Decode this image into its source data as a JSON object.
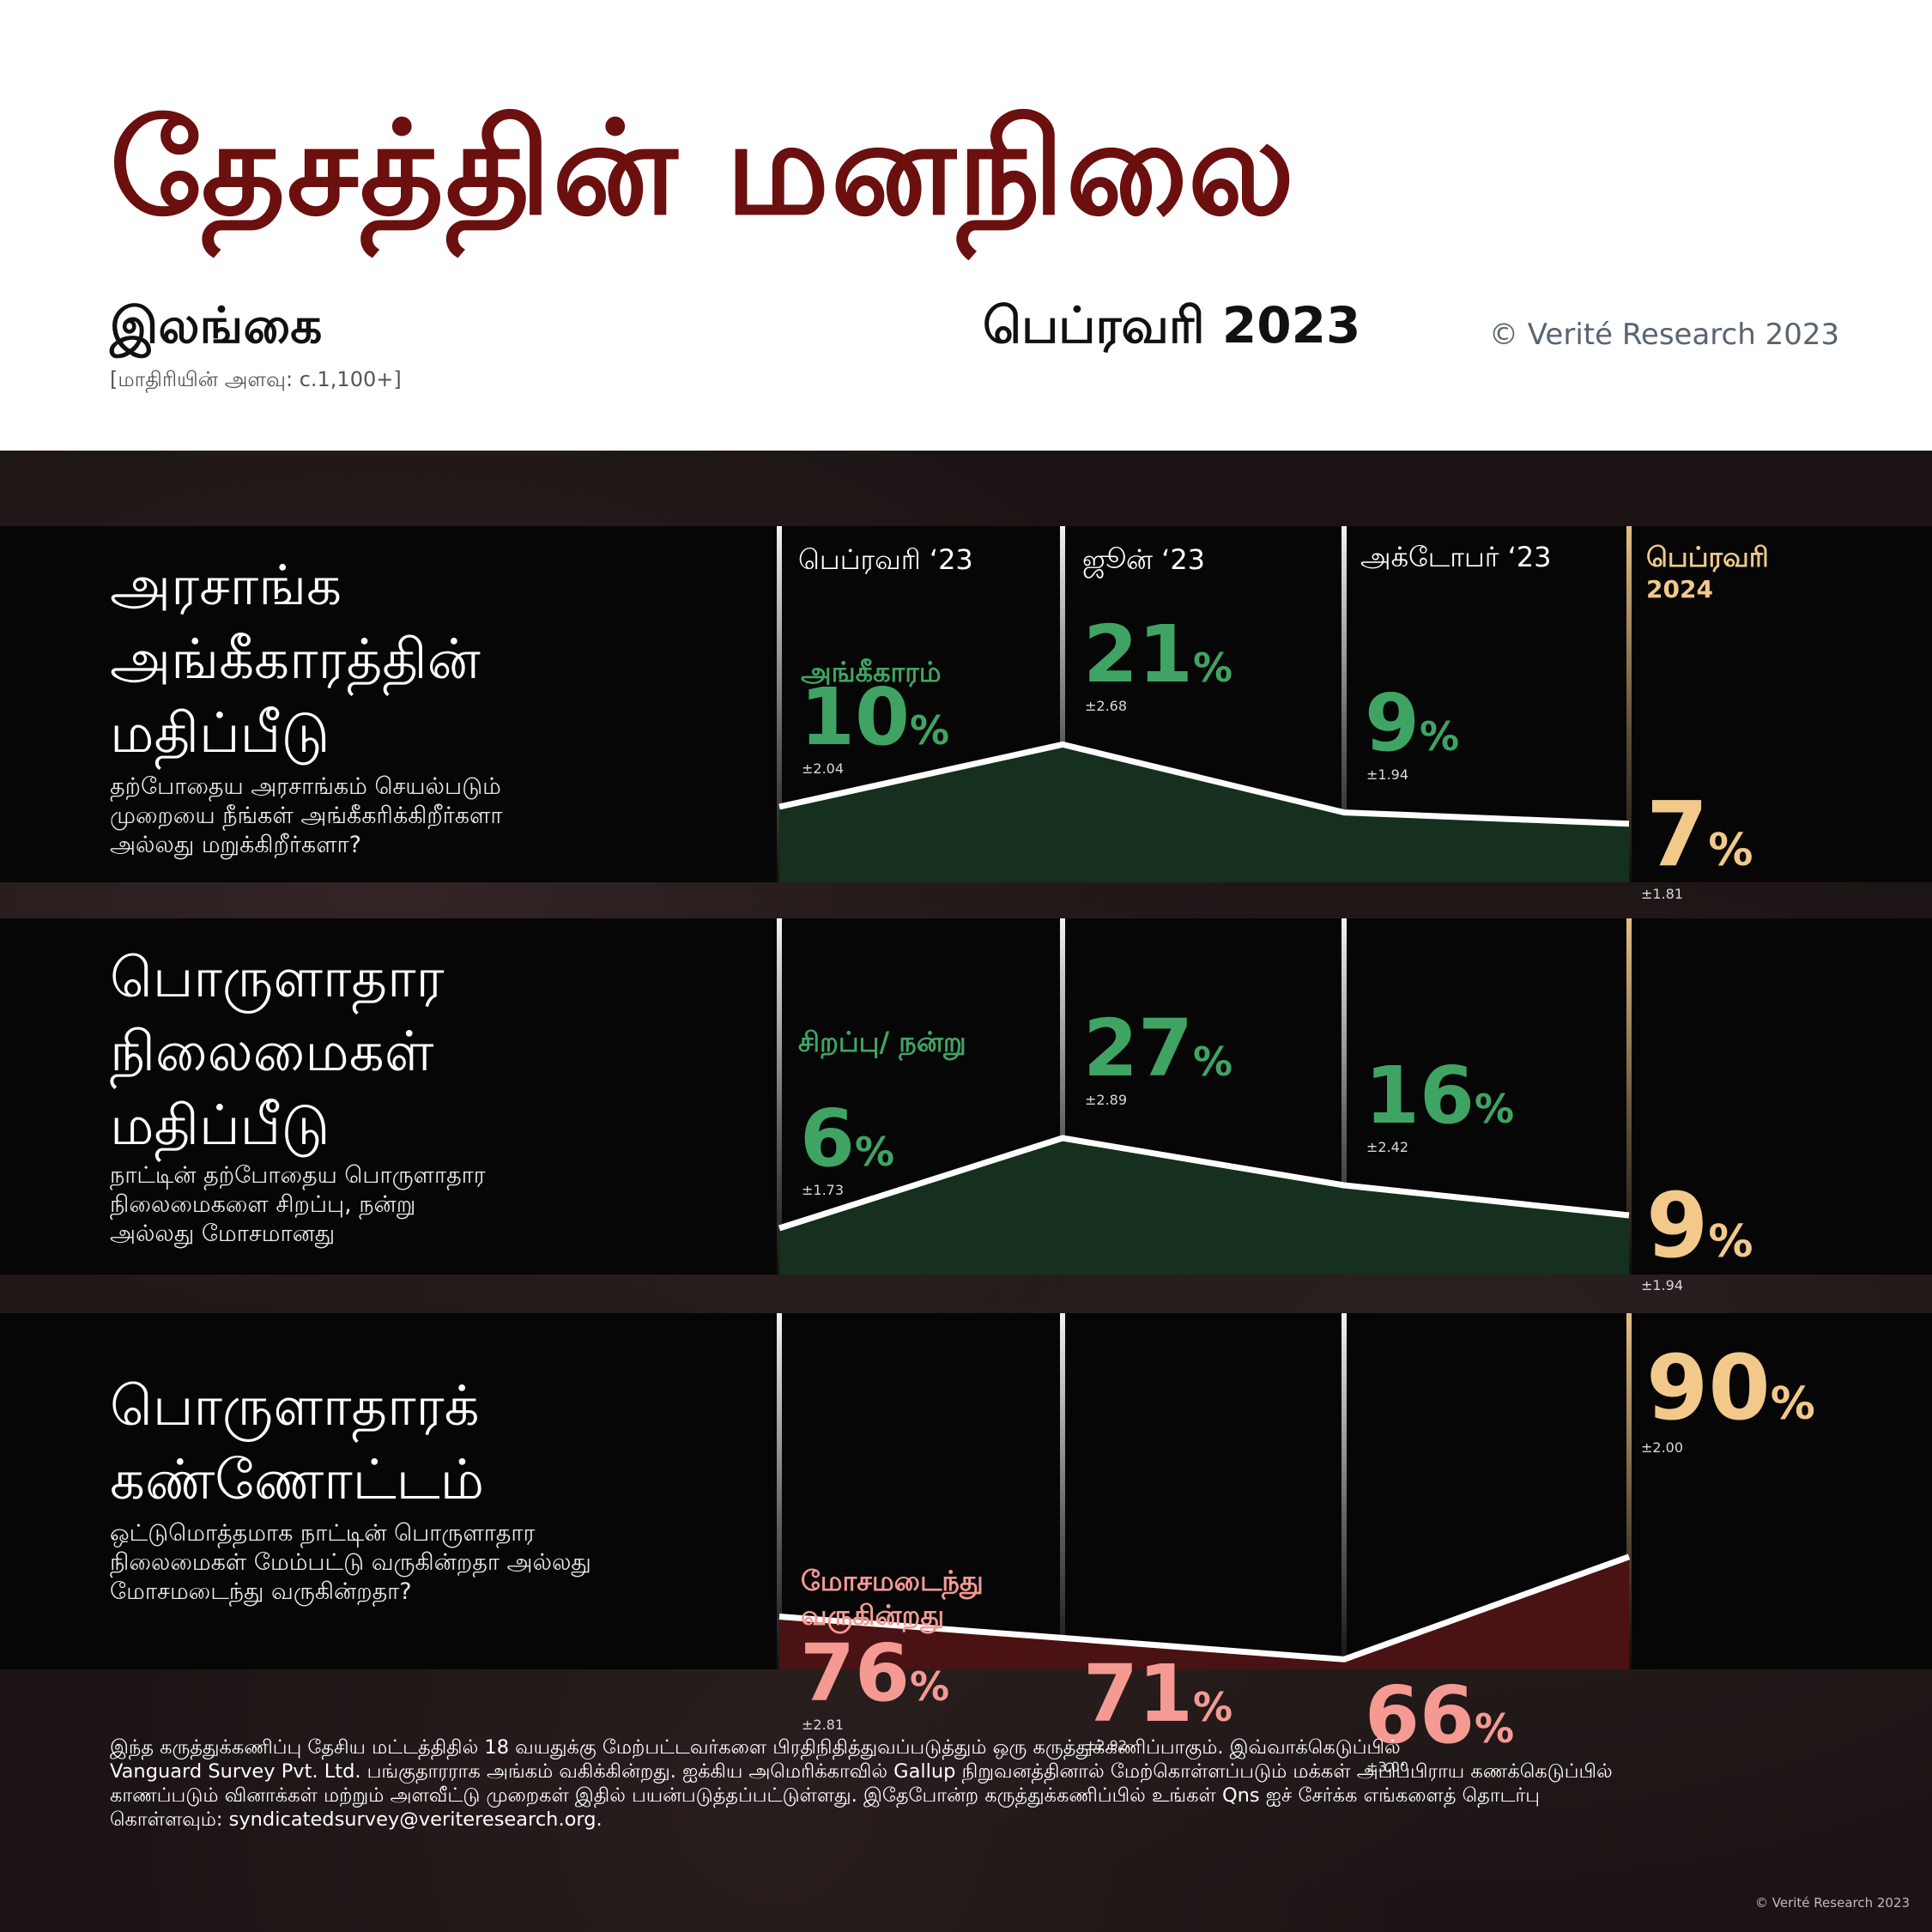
{
  "header": {
    "title": "தேசத்தின் மனநிலை",
    "country": "இலங்கை",
    "sample_size": "[மாதிரியின் அளவு: c.1,100+]",
    "survey_date": "பெப்ரவரி 2023",
    "copyright": "© Verité Research 2023"
  },
  "colors": {
    "title": "#6b0f0f",
    "positive": "#3fa463",
    "negative": "#f49a93",
    "highlight": "#f2c98a",
    "positive_fill": "#15301e",
    "negative_fill": "#4a1212"
  },
  "columns": [
    "பெப்ரவரி ‘23",
    "ஜூன் ‘23",
    "அக்டோபர் ‘23"
  ],
  "highlight_column": {
    "line1": "பெப்ரவரி",
    "line2": "2024"
  },
  "panels": [
    {
      "title_lines": [
        "அரசாங்க",
        "அங்கீகாரத்தின்",
        "மதிப்பீடு"
      ],
      "question_lines": [
        "தற்போதைய அரசாங்கம் செயல்படும்",
        "முறையை நீங்கள் அங்கீகரிக்கிறீர்களா",
        "அல்லது மறுக்கிறீர்களா?"
      ],
      "series_label": "அங்கீகாரம்"
    },
    {
      "title_lines": [
        "பொருளாதார",
        "நிலைமைகள்",
        "மதிப்பீடு"
      ],
      "question_lines": [
        "நாட்டின் தற்போதைய பொருளாதார",
        "நிலைமைகளை சிறப்பு, நன்று",
        "அல்லது மோசமானது"
      ],
      "series_label": "சிறப்பு/ நன்று"
    },
    {
      "title_lines": [
        "பொருளாதாரக்",
        "கண்ணோட்டம்"
      ],
      "question_lines": [
        "ஒட்டுமொத்தமாக நாட்டின் பொருளாதார",
        "நிலைமைகள் மேம்பட்டு வருகின்றதா அல்லது",
        "மோசமடைந்து வருகின்றதா?"
      ],
      "series_label_lines": [
        "மோசமடைந்து",
        "வருகின்றது"
      ]
    }
  ],
  "chart_data": [
    {
      "type": "area",
      "categories": [
        "பெப்ரவரி ‘23",
        "ஜூன் ‘23",
        "அக்டோபர் ‘23",
        "பெப்ரவரி 2024"
      ],
      "series": [
        {
          "name": "அங்கீகாரம்",
          "values": [
            10,
            21,
            9,
            7
          ],
          "margin_of_error": [
            "±2.04",
            "±2.68",
            "±1.94",
            "±1.81"
          ]
        }
      ],
      "unit": "%"
    },
    {
      "type": "area",
      "categories": [
        "பெப்ரவரி ‘23",
        "ஜூன் ‘23",
        "அக்டோபர் ‘23",
        "பெப்ரவரி 2024"
      ],
      "series": [
        {
          "name": "சிறப்பு/ நன்று",
          "values": [
            6,
            27,
            16,
            9
          ],
          "margin_of_error": [
            "±1.73",
            "±2.89",
            "±2.42",
            "±1.94"
          ]
        }
      ],
      "unit": "%"
    },
    {
      "type": "area",
      "categories": [
        "பெப்ரவரி ‘23",
        "ஜூன் ‘23",
        "அக்டோபர் ‘23",
        "பெப்ரவரி 2024"
      ],
      "series": [
        {
          "name": "மோசமடைந்து வருகின்றது",
          "values": [
            76,
            71,
            66,
            90
          ],
          "margin_of_error": [
            "±2.81",
            "±2.92",
            "±3.00",
            "±2.00"
          ]
        }
      ],
      "unit": "%"
    }
  ],
  "footnote": {
    "lines": [
      "இந்த கருத்துக்கணிப்பு தேசிய மட்டத்திதில் 18 வயதுக்கு மேற்பட்டவர்களை பிரதிநிதித்துவப்படுத்தும் ஒரு கருத்துக்கணிப்பாகும்.  இவ்வாக்கெடுப்பில்",
      "Vanguard Survey Pvt. Ltd. பங்குதாரராக அங்கம் வகிக்கின்றது. ஐக்கிய அமெரிக்காவில் Gallup நிறுவனத்தினால் மேற்கொள்ளப்படும் மக்கள் அபிப்பிராய கணக்கெடுப்பில்",
      "காணப்படும் வினாக்கள் மற்றும் அளவீட்டு முறைகள் இதில் பயன்படுத்தப்பட்டுள்ளது. இதேபோன்ற கருத்துக்கணிப்பில் உங்கள் Qns ஐச் சேர்க்க எங்களைத் தொடர்பு",
      "கொள்ளவும்: syndicatedsurvey@veriteresearch.org."
    ]
  },
  "copyright_bottom": "© Verité Research 2023"
}
